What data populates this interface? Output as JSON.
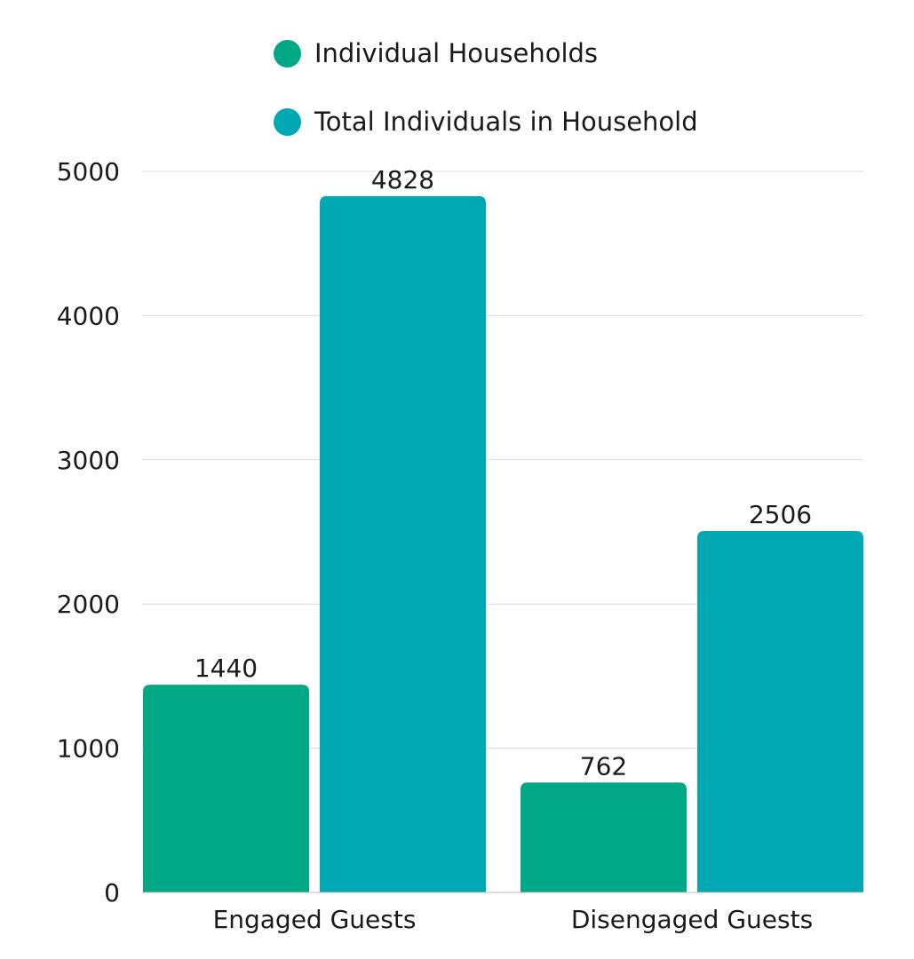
{
  "chart_data": {
    "type": "bar",
    "categories": [
      "Engaged Guests",
      "Disengaged Guests"
    ],
    "series": [
      {
        "name": "Individual Households",
        "values": [
          1440,
          762
        ],
        "color": "#00a886"
      },
      {
        "name": "Total Individuals in Household",
        "values": [
          4828,
          2506
        ],
        "color": "#00a8b3"
      }
    ],
    "ylim": [
      0,
      5000
    ],
    "yticks": [
      0,
      1000,
      2000,
      3000,
      4000,
      5000
    ],
    "grid": true,
    "legend_position": "top",
    "title": "",
    "xlabel": "",
    "ylabel": ""
  },
  "colors": {
    "grid": "#dcdcdc",
    "axis": "#bdbdbd"
  }
}
